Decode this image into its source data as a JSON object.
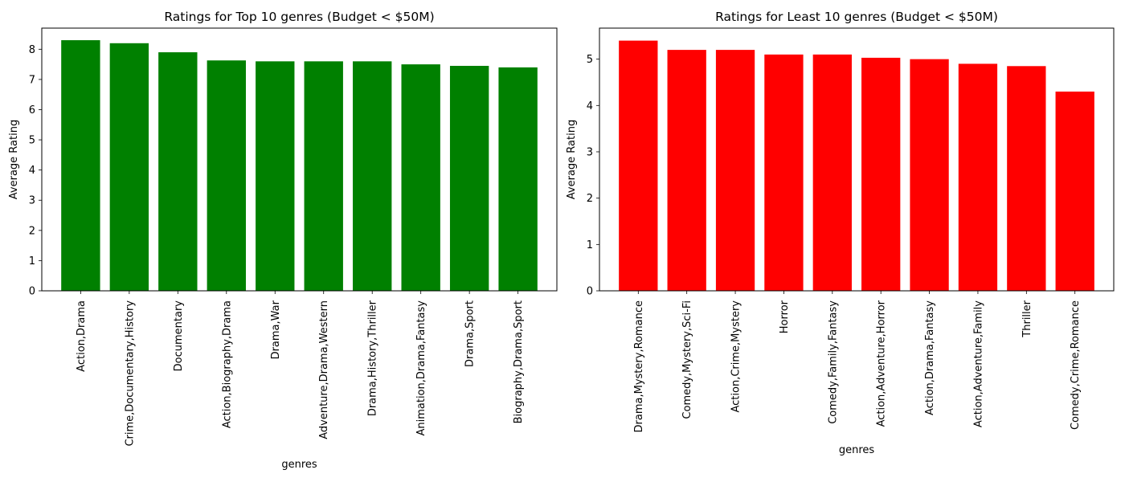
{
  "chart_data": [
    {
      "type": "bar",
      "title": "Ratings for Top 10 genres (Budget < $50M)",
      "xlabel": "genres",
      "ylabel": "Average Rating",
      "ylim": [
        0,
        8.7
      ],
      "yticks": [
        0,
        1,
        2,
        3,
        4,
        5,
        6,
        7,
        8
      ],
      "color": "#008000",
      "grid": false,
      "categories": [
        "Action,Drama",
        "Crime,Documentary,History",
        "Documentary",
        "Action,Biography,Drama",
        "Drama,War",
        "Adventure,Drama,Western",
        "Drama,History,Thriller",
        "Animation,Drama,Fantasy",
        "Drama,Sport",
        "Biography,Drama,Sport"
      ],
      "values": [
        8.3,
        8.2,
        7.9,
        7.63,
        7.6,
        7.6,
        7.6,
        7.5,
        7.45,
        7.4
      ]
    },
    {
      "type": "bar",
      "title": "Ratings for Least 10 genres (Budget < $50M)",
      "xlabel": "genres",
      "ylabel": "Average Rating",
      "ylim": [
        0,
        5.67
      ],
      "yticks": [
        0,
        1,
        2,
        3,
        4,
        5
      ],
      "color": "#ff0000",
      "grid": false,
      "categories": [
        "Drama,Mystery,Romance",
        "Comedy,Mystery,Sci-Fi",
        "Action,Crime,Mystery",
        "Horror",
        "Comedy,Family,Fantasy",
        "Action,Adventure,Horror",
        "Action,Drama,Fantasy",
        "Action,Adventure,Family",
        "Thriller",
        "Comedy,Crime,Romance"
      ],
      "values": [
        5.4,
        5.2,
        5.2,
        5.1,
        5.1,
        5.03,
        5.0,
        4.9,
        4.85,
        4.3
      ]
    }
  ]
}
